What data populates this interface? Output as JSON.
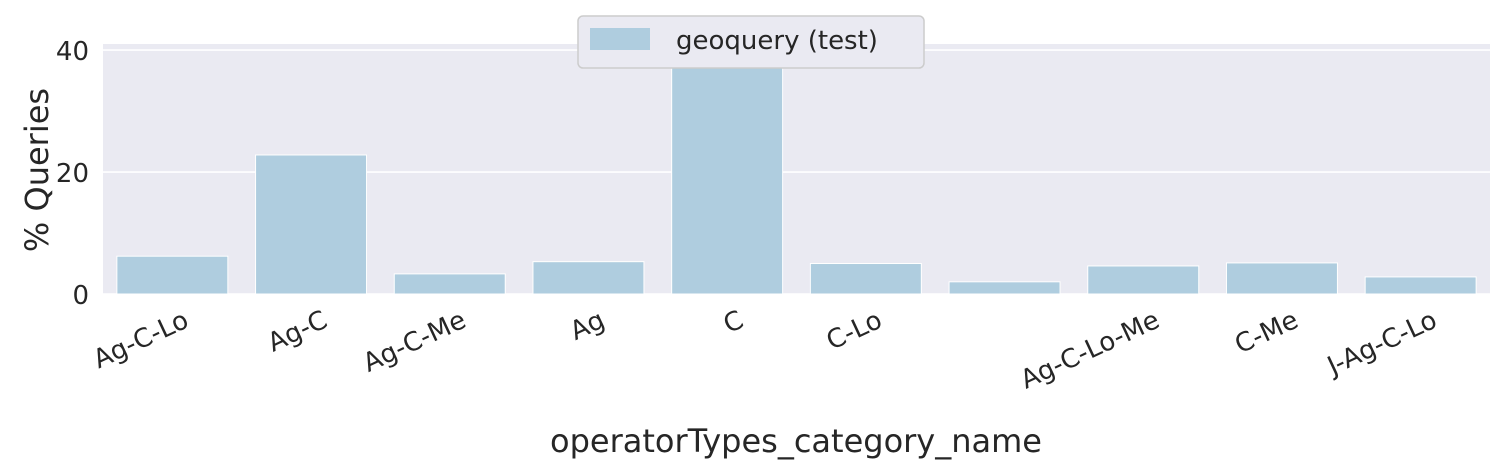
{
  "chart_data": {
    "type": "bar",
    "categories": [
      "Ag-C-Lo",
      "Ag-C",
      "Ag-C-Me",
      "Ag",
      "C",
      "C-Lo",
      "",
      "Ag-C-Lo-Me",
      "C-Me",
      "J-Ag-C-Lo"
    ],
    "series": [
      {
        "name": "geoquery (test)",
        "values": [
          6.2,
          22.8,
          3.3,
          5.3,
          39.0,
          5.0,
          2.0,
          4.6,
          5.1,
          2.8
        ]
      }
    ],
    "xlabel": "operatorTypes_category_name",
    "ylabel": "% Queries",
    "ylim": [
      0,
      41
    ],
    "yticks": [
      "0",
      "20",
      "40"
    ],
    "grid": true,
    "legend_position": "top-center",
    "colors": {
      "bar": "#afcddf",
      "plot_bg": "#eaeaf2",
      "grid": "#ffffff",
      "text": "#262626"
    }
  }
}
